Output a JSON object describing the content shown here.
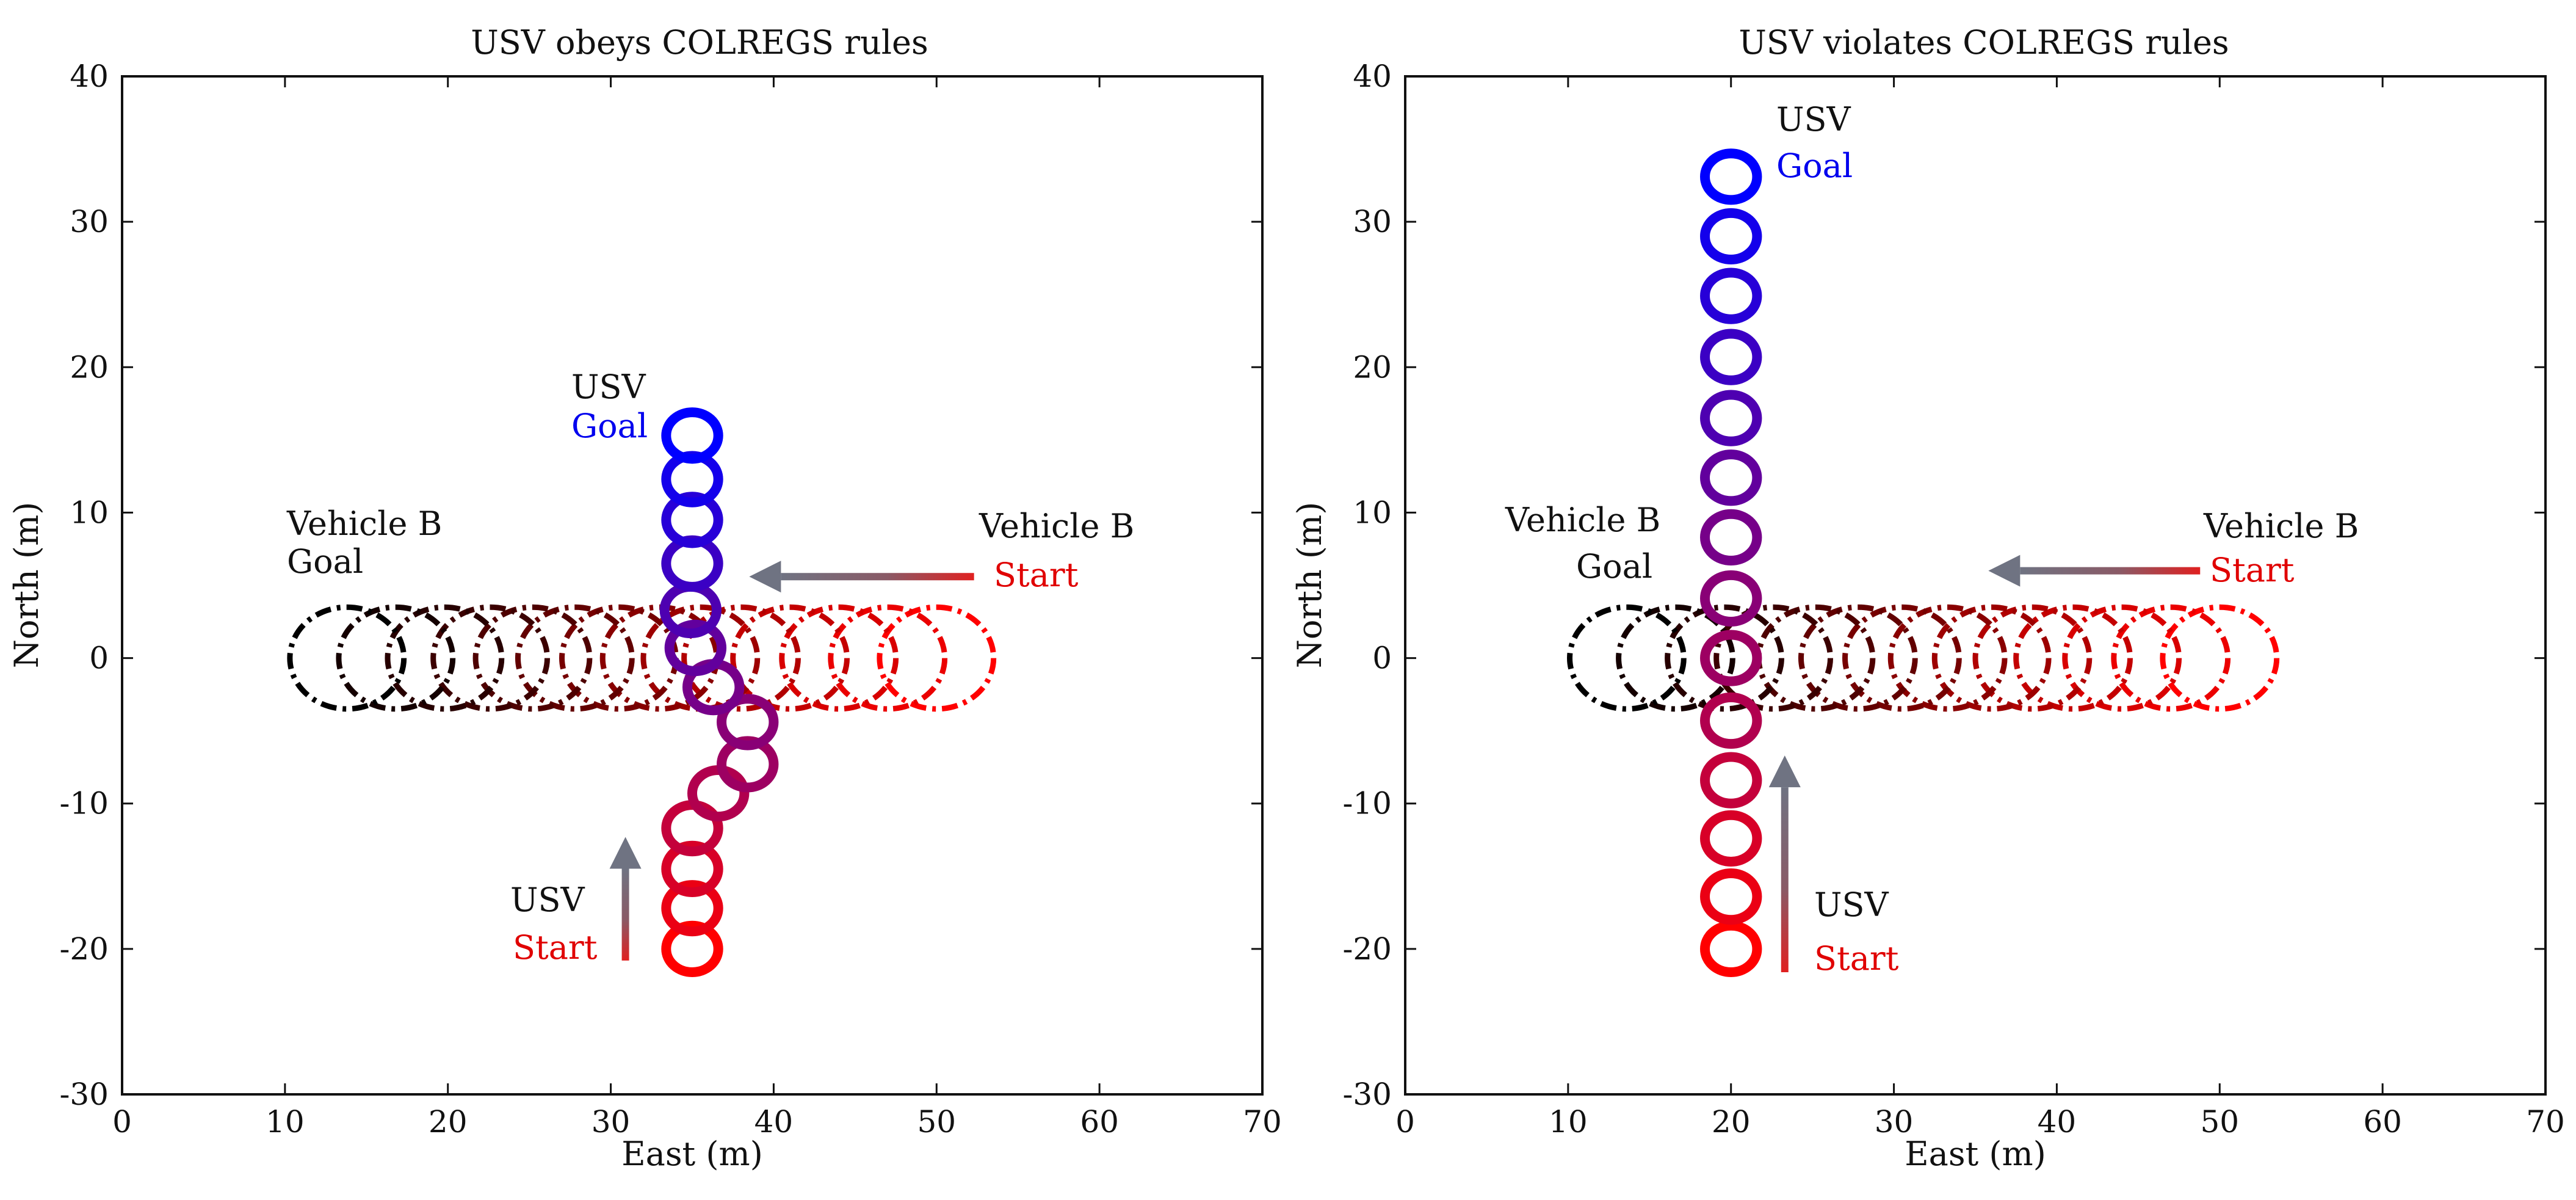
{
  "chart_data": [
    {
      "type": "scatter",
      "title": "USV obeys COLREGS rules",
      "xlabel": "East (m)",
      "ylabel": "North (m)",
      "xlim": [
        0,
        70
      ],
      "ylim": [
        -30,
        40
      ],
      "xticks": [
        "0",
        "10",
        "20",
        "30",
        "40",
        "50",
        "60",
        "70"
      ],
      "yticks": [
        "-30",
        "-20",
        "-10",
        "0",
        "10",
        "20",
        "30",
        "40"
      ],
      "series": [
        {
          "name": "USV",
          "style": "solid circles",
          "color_start": "#ff0000",
          "color_end": "#0000ff",
          "radius_m": 1.6,
          "x": [
            35,
            35,
            35,
            35,
            36.6,
            38.4,
            38.4,
            36.3,
            35.2,
            34.9,
            35,
            35,
            35,
            35
          ],
          "y": [
            -20,
            -17.2,
            -14.5,
            -11.7,
            -9.3,
            -7.3,
            -4.4,
            -2,
            0.7,
            3.3,
            6.5,
            9.5,
            12.3,
            15.3
          ]
        },
        {
          "name": "Vehicle B",
          "style": "dash-dot circles",
          "color_start": "#ff0000",
          "color_end": "#000000",
          "radius_m": 3.5,
          "x": [
            50,
            47,
            44,
            41,
            38,
            35.5,
            33,
            30.5,
            27.8,
            25.2,
            22.6,
            19.8,
            16.8,
            13.8
          ],
          "y": [
            0,
            0,
            0,
            0,
            0,
            0,
            0,
            0,
            0,
            0,
            0,
            0,
            0,
            0
          ]
        }
      ],
      "annotations": {
        "usv_goal_line1": "USV",
        "usv_goal_line2": "Goal",
        "vb_goal_line1": "Vehicle B",
        "vb_goal_line2": "Goal",
        "vb_start_line1": "Vehicle B",
        "vb_start_line2": "Start",
        "usv_start_line1": "USV",
        "usv_start_line2": "Start"
      },
      "arrows": [
        {
          "name": "vehicle-b-direction",
          "from": [
            52.3,
            5.6
          ],
          "to": [
            38.5,
            5.6
          ]
        },
        {
          "name": "usv-direction",
          "from": [
            30.9,
            -20.8
          ],
          "to": [
            30.9,
            -12.3
          ]
        }
      ]
    },
    {
      "type": "scatter",
      "title": "USV violates COLREGS rules",
      "xlabel": "East (m)",
      "ylabel": "North (m)",
      "xlim": [
        0,
        70
      ],
      "ylim": [
        -30,
        40
      ],
      "xticks": [
        "0",
        "10",
        "20",
        "30",
        "40",
        "50",
        "60",
        "70"
      ],
      "yticks": [
        "-30",
        "-20",
        "-10",
        "0",
        "10",
        "20",
        "30",
        "40"
      ],
      "series": [
        {
          "name": "USV",
          "style": "solid circles",
          "color_start": "#ff0000",
          "color_end": "#0000ff",
          "radius_m": 1.6,
          "x": [
            20,
            20,
            20,
            20,
            20,
            20,
            20,
            20,
            20,
            20,
            20,
            20,
            20,
            20
          ],
          "y": [
            -20,
            -16.4,
            -12.4,
            -8.4,
            -4.3,
            0,
            4.1,
            8.3,
            12.4,
            16.5,
            20.7,
            24.9,
            29,
            33.1
          ]
        },
        {
          "name": "Vehicle B",
          "style": "dash-dot circles",
          "color_start": "#ff0000",
          "color_end": "#000000",
          "radius_m": 3.5,
          "x": [
            50,
            47,
            44,
            41,
            38.5,
            36,
            33.3,
            30.5,
            27.8,
            25.2,
            22.6,
            19.6,
            16.6,
            13.6
          ],
          "y": [
            0,
            0,
            0,
            0,
            0,
            0,
            0,
            0,
            0,
            0,
            0,
            0,
            0,
            0
          ]
        }
      ],
      "annotations": {
        "usv_goal_line1": "USV",
        "usv_goal_line2": "Goal",
        "vb_goal_line1": "Vehicle B",
        "vb_goal_line2": "Goal",
        "vb_start_line1": "Vehicle B",
        "vb_start_line2": "Start",
        "usv_start_line1": "USV",
        "usv_start_line2": "Start"
      },
      "arrows": [
        {
          "name": "vehicle-b-direction",
          "from": [
            48.8,
            6.0
          ],
          "to": [
            35.8,
            6.0
          ]
        },
        {
          "name": "usv-direction",
          "from": [
            23.3,
            -21.6
          ],
          "to": [
            23.3,
            -6.7
          ]
        }
      ]
    }
  ]
}
